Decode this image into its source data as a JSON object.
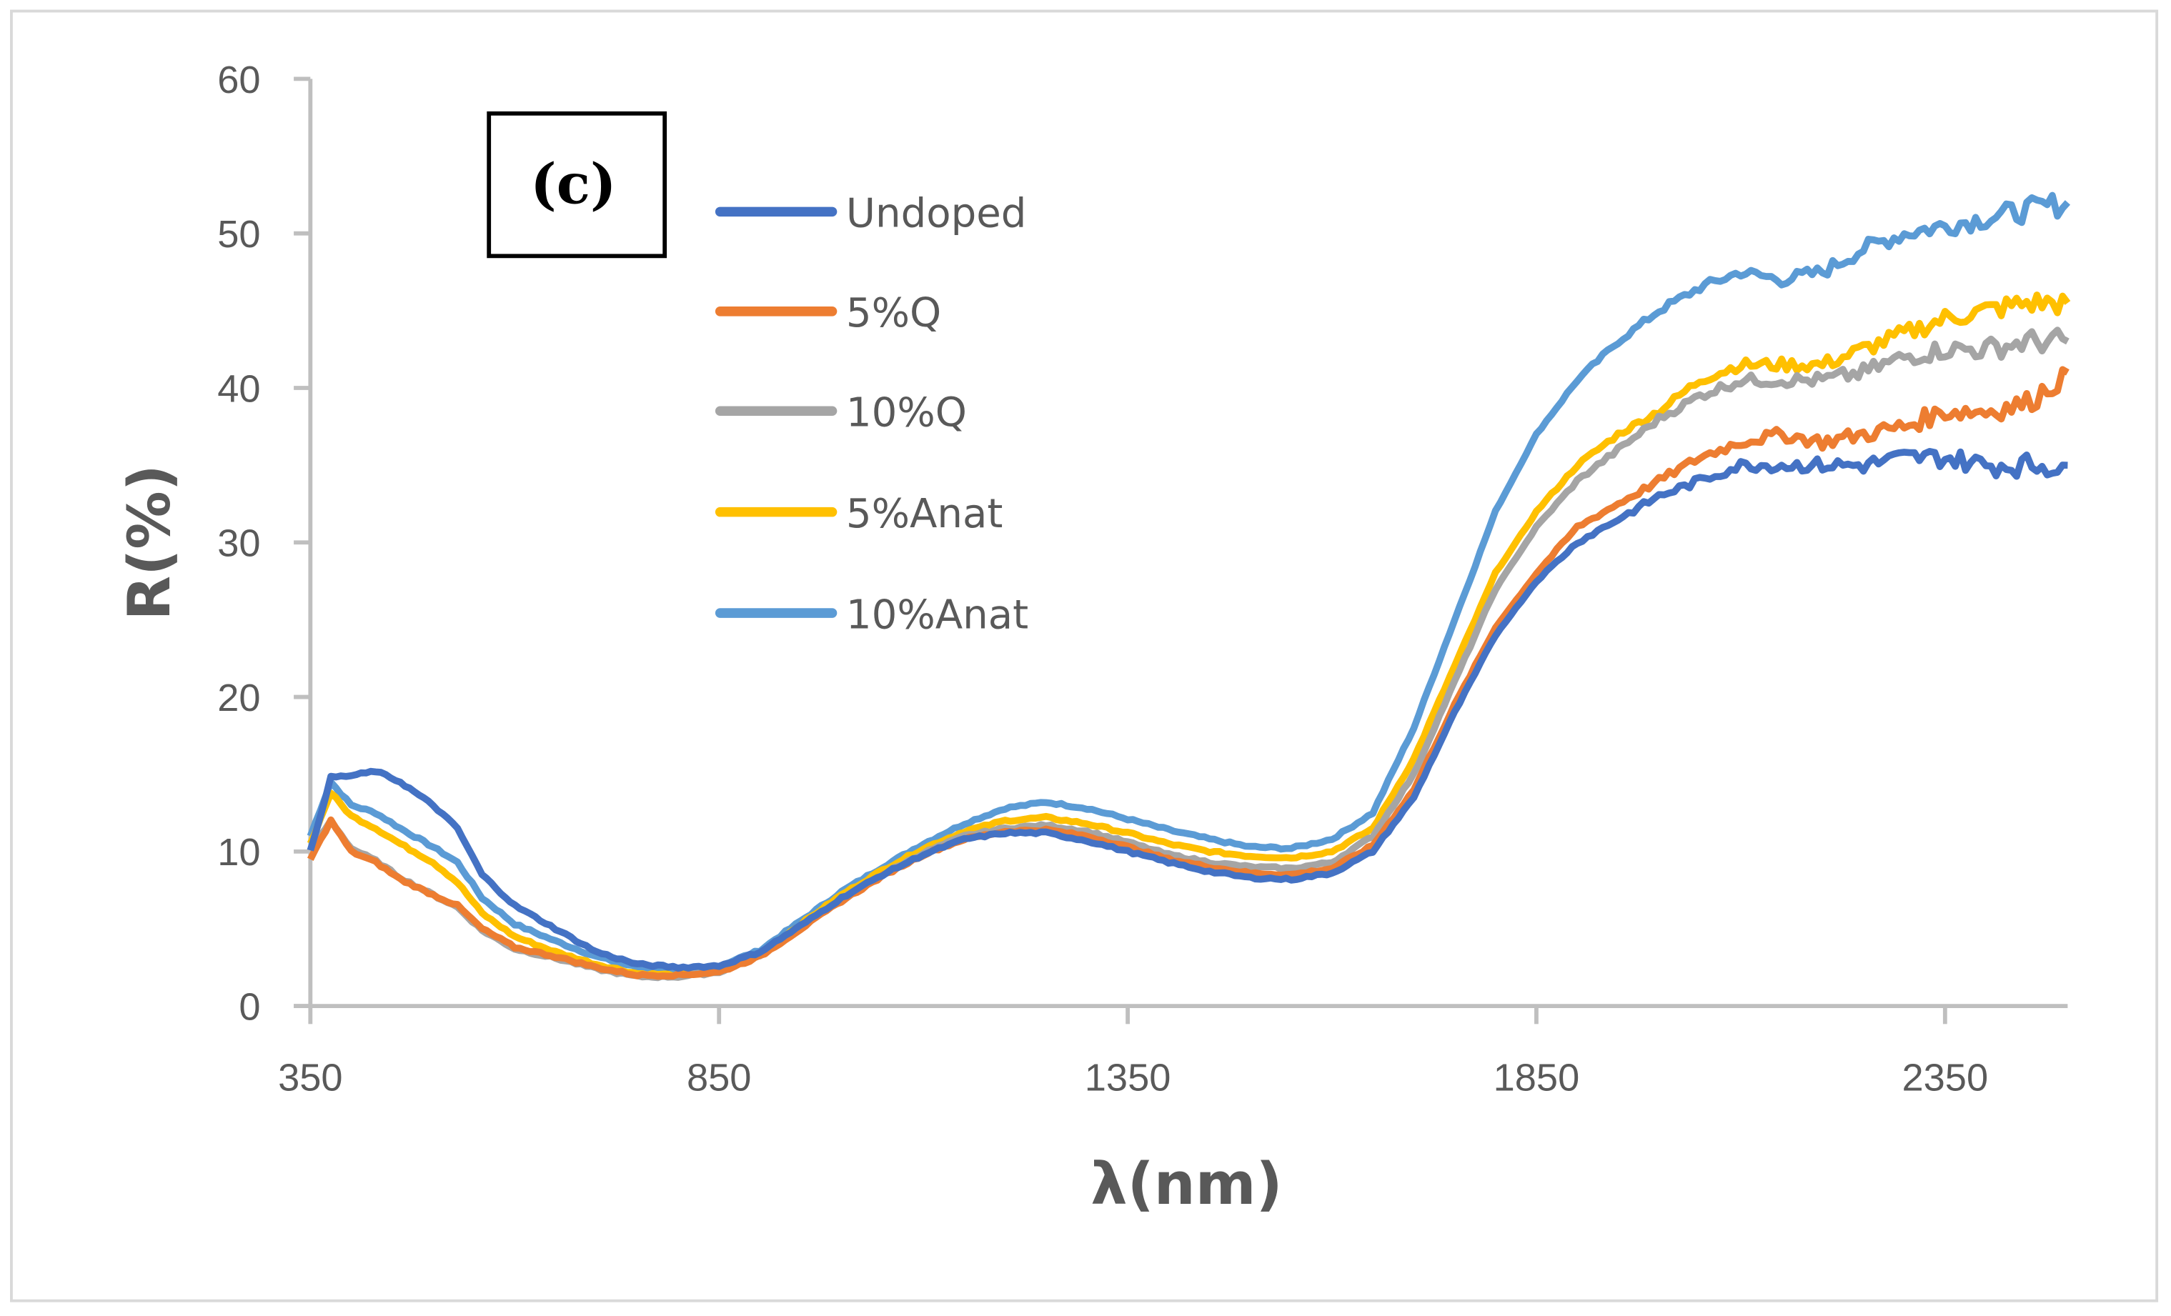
{
  "chart_data": {
    "type": "line",
    "title": "",
    "panel_label": "(c)",
    "xlabel": "λ(nm)",
    "ylabel": "R(%)",
    "xlim": [
      350,
      2500
    ],
    "ylim": [
      0,
      60
    ],
    "xticks": [
      350,
      850,
      1350,
      1850,
      2350
    ],
    "yticks": [
      0,
      10,
      20,
      30,
      40,
      50,
      60
    ],
    "grid": false,
    "legend_placement": "top-left",
    "x": [
      350,
      375,
      400,
      430,
      460,
      500,
      530,
      560,
      600,
      650,
      700,
      750,
      800,
      850,
      900,
      950,
      1000,
      1050,
      1100,
      1150,
      1200,
      1250,
      1300,
      1350,
      1400,
      1450,
      1500,
      1550,
      1600,
      1650,
      1700,
      1750,
      1800,
      1850,
      1900,
      1950,
      2000,
      2050,
      2100,
      2150,
      2200,
      2250,
      2300,
      2350,
      2400,
      2450,
      2500
    ],
    "series": [
      {
        "name": "Undoped",
        "color": "#4472c4",
        "values": [
          10,
          14.8,
          14.9,
          15.2,
          14.5,
          13,
          11.5,
          8.5,
          6.5,
          5,
          3.5,
          2.7,
          2.5,
          2.6,
          3.5,
          5.2,
          7,
          8.5,
          9.8,
          10.8,
          11.2,
          11.2,
          10.7,
          10,
          9.3,
          8.7,
          8.3,
          8.2,
          8.6,
          10,
          13.5,
          19,
          24,
          27.5,
          30,
          31.5,
          33,
          34,
          35,
          35,
          35,
          35,
          35.5,
          35.5,
          35,
          35,
          35
        ]
      },
      {
        "name": "5%Q",
        "color": "#ed7d31",
        "values": [
          9.5,
          12,
          10,
          9.3,
          8.2,
          7.2,
          6.5,
          5,
          3.8,
          3.2,
          2.5,
          2,
          2,
          2.2,
          3.2,
          5,
          6.8,
          8.4,
          9.8,
          10.8,
          11.3,
          11.4,
          11,
          10.3,
          9.5,
          9,
          8.6,
          8.5,
          8.9,
          10.4,
          14,
          19.5,
          24.5,
          28,
          31,
          32.5,
          34,
          35.5,
          36.5,
          37,
          36.5,
          37,
          37.5,
          38.5,
          38.5,
          39,
          41
        ]
      },
      {
        "name": "10%Q",
        "color": "#a5a5a5",
        "values": [
          10,
          12,
          10.2,
          9.4,
          8.3,
          7.2,
          6.4,
          4.9,
          3.7,
          3.1,
          2.4,
          1.9,
          1.9,
          2.2,
          3.3,
          5.1,
          6.9,
          8.5,
          9.9,
          11,
          11.5,
          11.7,
          11.3,
          10.6,
          9.8,
          9.3,
          9,
          8.9,
          9.3,
          11,
          15,
          21,
          27,
          31,
          34,
          36,
          38,
          39.5,
          40.5,
          40.5,
          40.5,
          41,
          42,
          42.5,
          42.5,
          43,
          43
        ]
      },
      {
        "name": "5%Anat",
        "color": "#ffc000",
        "values": [
          10.5,
          13.8,
          12.3,
          11.5,
          10.5,
          9.3,
          8,
          6,
          4.5,
          3.5,
          2.7,
          2.1,
          2,
          2.3,
          3.4,
          5.3,
          7.2,
          8.8,
          10.2,
          11.3,
          12,
          12.2,
          11.8,
          11.2,
          10.5,
          10,
          9.7,
          9.6,
          10,
          11.5,
          16,
          22,
          28,
          32,
          35,
          37,
          38.5,
          40.5,
          41.5,
          41.5,
          41.5,
          42.5,
          43.5,
          44.5,
          45,
          45.5,
          45.5
        ]
      },
      {
        "name": "10%Anat",
        "color": "#5b9bd5",
        "values": [
          11,
          14.5,
          13,
          12.5,
          11.5,
          10.3,
          9.3,
          7,
          5.3,
          4.2,
          3.2,
          2.5,
          2.3,
          2.6,
          3.6,
          5.5,
          7.4,
          9,
          10.5,
          11.8,
          12.8,
          13.2,
          12.8,
          12.1,
          11.4,
          10.8,
          10.3,
          10.2,
          10.8,
          12.5,
          18,
          25,
          32,
          37,
          40.5,
          43,
          45,
          46.5,
          47.5,
          47,
          47.5,
          49,
          50,
          50.5,
          51,
          51.5,
          52
        ]
      }
    ]
  }
}
